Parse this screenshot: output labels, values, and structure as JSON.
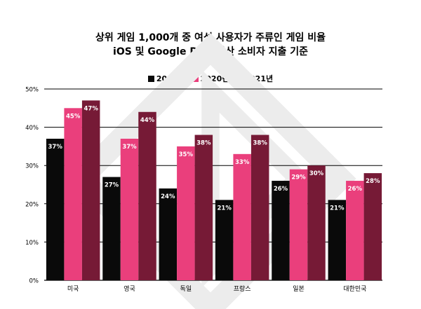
{
  "title": {
    "line1": "상위 게임 1,000개 중 여성 사용자가 주류인 게임 비율",
    "line2": "iOS 및 Google Play 합산 소비자 지출 기준"
  },
  "colors": {
    "2019": "#0a0a0a",
    "2020": "#ea3f7c",
    "2021": "#761a36",
    "watermark": "#ececec",
    "axis": "#000000"
  },
  "chart_data": {
    "type": "bar",
    "title": "상위 게임 1,000개 중 여성 사용자가 주류인 게임 비율",
    "subtitle": "iOS 및 Google Play 합산 소비자 지출 기준",
    "categories": [
      "미국",
      "영국",
      "독일",
      "프랑스",
      "일본",
      "대한민국"
    ],
    "series": [
      {
        "name": "2019년",
        "color": "#0a0a0a",
        "values": [
          37,
          27,
          24,
          21,
          26,
          21
        ]
      },
      {
        "name": "2020년",
        "color": "#ea3f7c",
        "values": [
          45,
          37,
          35,
          33,
          29,
          26
        ]
      },
      {
        "name": "2021년",
        "color": "#761a36",
        "values": [
          47,
          44,
          38,
          38,
          30,
          28
        ]
      }
    ],
    "data_labels": [
      [
        "37%",
        "27%",
        "24%",
        "21%",
        "26%",
        "21%"
      ],
      [
        "45%",
        "37%",
        "35%",
        "33%",
        "29%",
        "26%"
      ],
      [
        "47%",
        "44%",
        "38%",
        "38%",
        "30%",
        "28%"
      ]
    ],
    "yticks": [
      "0%",
      "10%",
      "20%",
      "30%",
      "40%",
      "50%"
    ],
    "ylim": [
      0,
      50
    ],
    "grid": true,
    "legend_position": "top-center"
  }
}
